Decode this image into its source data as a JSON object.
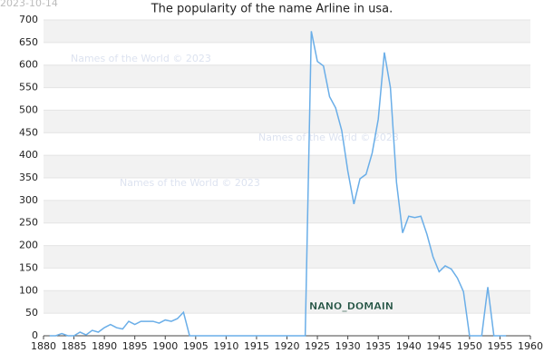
{
  "chart_data": {
    "type": "line",
    "title": "The popularity of the name Arline in usa.",
    "date_stamp": "2023-10-14",
    "watermarks": [
      "Names of the World © 2023",
      "Names of the World © 2023",
      "Names of the World © 2023"
    ],
    "domain_label": "NANO_DOMAIN",
    "x": [
      1881,
      1882,
      1883,
      1884,
      1885,
      1886,
      1887,
      1888,
      1889,
      1890,
      1891,
      1892,
      1893,
      1894,
      1895,
      1896,
      1897,
      1898,
      1899,
      1900,
      1901,
      1902,
      1903,
      1904,
      1905,
      1906,
      1907,
      1908,
      1909,
      1910,
      1911,
      1912,
      1913,
      1914,
      1915,
      1916,
      1917,
      1918,
      1919,
      1920,
      1921,
      1922,
      1923,
      1924,
      1925,
      1926,
      1927,
      1928,
      1929,
      1930,
      1931,
      1932,
      1933,
      1934,
      1935,
      1936,
      1937,
      1938,
      1939,
      1940,
      1941,
      1942,
      1943,
      1944,
      1945,
      1946,
      1947,
      1948,
      1949,
      1950,
      1951,
      1952,
      1953,
      1954,
      1955,
      1956
    ],
    "series": [
      {
        "name": "Arline",
        "color": "#6aaee8",
        "values": [
          0,
          0,
          5,
          0,
          0,
          8,
          2,
          12,
          8,
          18,
          25,
          18,
          15,
          32,
          25,
          32,
          32,
          32,
          28,
          35,
          32,
          38,
          52,
          0,
          0,
          0,
          0,
          0,
          0,
          0,
          0,
          0,
          0,
          0,
          0,
          0,
          0,
          0,
          0,
          0,
          0,
          0,
          0,
          675,
          608,
          598,
          530,
          505,
          455,
          365,
          292,
          348,
          358,
          405,
          480,
          628,
          550,
          340,
          228,
          265,
          262,
          265,
          225,
          175,
          142,
          155,
          148,
          128,
          98,
          0,
          0,
          0,
          108,
          0,
          0,
          0
        ]
      }
    ],
    "xlim": [
      1880,
      1960
    ],
    "xticks": [
      1880,
      1885,
      1890,
      1895,
      1900,
      1905,
      1910,
      1915,
      1920,
      1925,
      1930,
      1935,
      1940,
      1945,
      1950,
      1955,
      1960
    ],
    "ylim": [
      0,
      700
    ],
    "yticks": [
      0,
      50,
      100,
      150,
      200,
      250,
      300,
      350,
      400,
      450,
      500,
      550,
      600,
      650,
      700
    ],
    "grid": true
  }
}
